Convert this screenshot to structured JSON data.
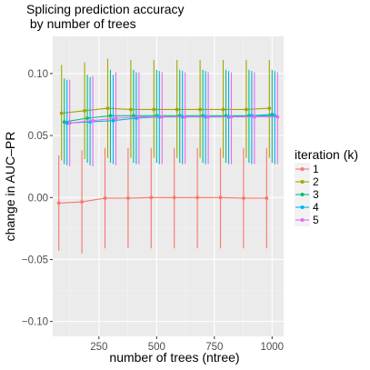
{
  "chart_data": {
    "type": "line",
    "title_lines": [
      "Splicing prediction accuracy",
      " by number of trees"
    ],
    "xlabel": "number of trees (ntree)",
    "ylabel": "change in AUC–PR",
    "xlim": [
      50,
      1050
    ],
    "ylim": [
      -0.112,
      0.13
    ],
    "x_ticks": [
      250,
      500,
      750,
      1000
    ],
    "x_tick_labels": [
      "250",
      "500",
      "750",
      "1000"
    ],
    "y_ticks": [
      -0.1,
      -0.05,
      0.0,
      0.05,
      0.1
    ],
    "y_tick_labels": [
      "−0.10",
      "−0.05",
      "0.00",
      "0.05",
      "0.10"
    ],
    "grid": true,
    "legend": {
      "title": "iteration (k)",
      "placement": "right"
    },
    "x": [
      100,
      200,
      300,
      400,
      500,
      600,
      700,
      800,
      900,
      1000
    ],
    "series": [
      {
        "name": "1",
        "color": "#F8766D",
        "values": [
          -0.0045,
          -0.0035,
          -0.0005,
          -0.0005,
          0.0,
          0.0,
          0.0,
          0.0,
          -0.0005,
          -0.0005
        ],
        "lower": [
          -0.043,
          -0.045,
          -0.041,
          -0.041,
          -0.041,
          -0.041,
          -0.041,
          -0.041,
          -0.041,
          -0.041
        ],
        "upper": [
          0.034,
          0.038,
          0.04,
          0.04,
          0.04,
          0.04,
          0.04,
          0.04,
          0.04,
          0.04
        ]
      },
      {
        "name": "2",
        "color": "#A3A500",
        "values": [
          0.068,
          0.07,
          0.072,
          0.071,
          0.071,
          0.071,
          0.071,
          0.071,
          0.071,
          0.072
        ],
        "lower": [
          0.03,
          0.031,
          0.032,
          0.032,
          0.032,
          0.032,
          0.032,
          0.032,
          0.032,
          0.032
        ],
        "upper": [
          0.107,
          0.109,
          0.112,
          0.111,
          0.111,
          0.111,
          0.111,
          0.111,
          0.111,
          0.111
        ]
      },
      {
        "name": "3",
        "color": "#00BF7D",
        "values": [
          0.061,
          0.064,
          0.066,
          0.066,
          0.066,
          0.066,
          0.066,
          0.066,
          0.066,
          0.067
        ],
        "lower": [
          0.027,
          0.028,
          0.028,
          0.028,
          0.028,
          0.028,
          0.028,
          0.028,
          0.028,
          0.028
        ],
        "upper": [
          0.096,
          0.099,
          0.103,
          0.103,
          0.103,
          0.103,
          0.103,
          0.103,
          0.103,
          0.103
        ]
      },
      {
        "name": "4",
        "color": "#00B0F6",
        "values": [
          0.06,
          0.061,
          0.062,
          0.064,
          0.065,
          0.065,
          0.065,
          0.065,
          0.066,
          0.066
        ],
        "lower": [
          0.026,
          0.026,
          0.027,
          0.027,
          0.027,
          0.027,
          0.027,
          0.027,
          0.027,
          0.027
        ],
        "upper": [
          0.095,
          0.097,
          0.099,
          0.101,
          0.102,
          0.102,
          0.102,
          0.102,
          0.102,
          0.102
        ]
      },
      {
        "name": "5",
        "color": "#E76BF3",
        "values": [
          0.06,
          0.062,
          0.064,
          0.065,
          0.065,
          0.065,
          0.065,
          0.065,
          0.065,
          0.065
        ],
        "lower": [
          0.025,
          0.025,
          0.026,
          0.027,
          0.027,
          0.027,
          0.027,
          0.027,
          0.027,
          0.027
        ],
        "upper": [
          0.095,
          0.098,
          0.101,
          0.101,
          0.101,
          0.101,
          0.101,
          0.101,
          0.101,
          0.101
        ]
      }
    ]
  }
}
